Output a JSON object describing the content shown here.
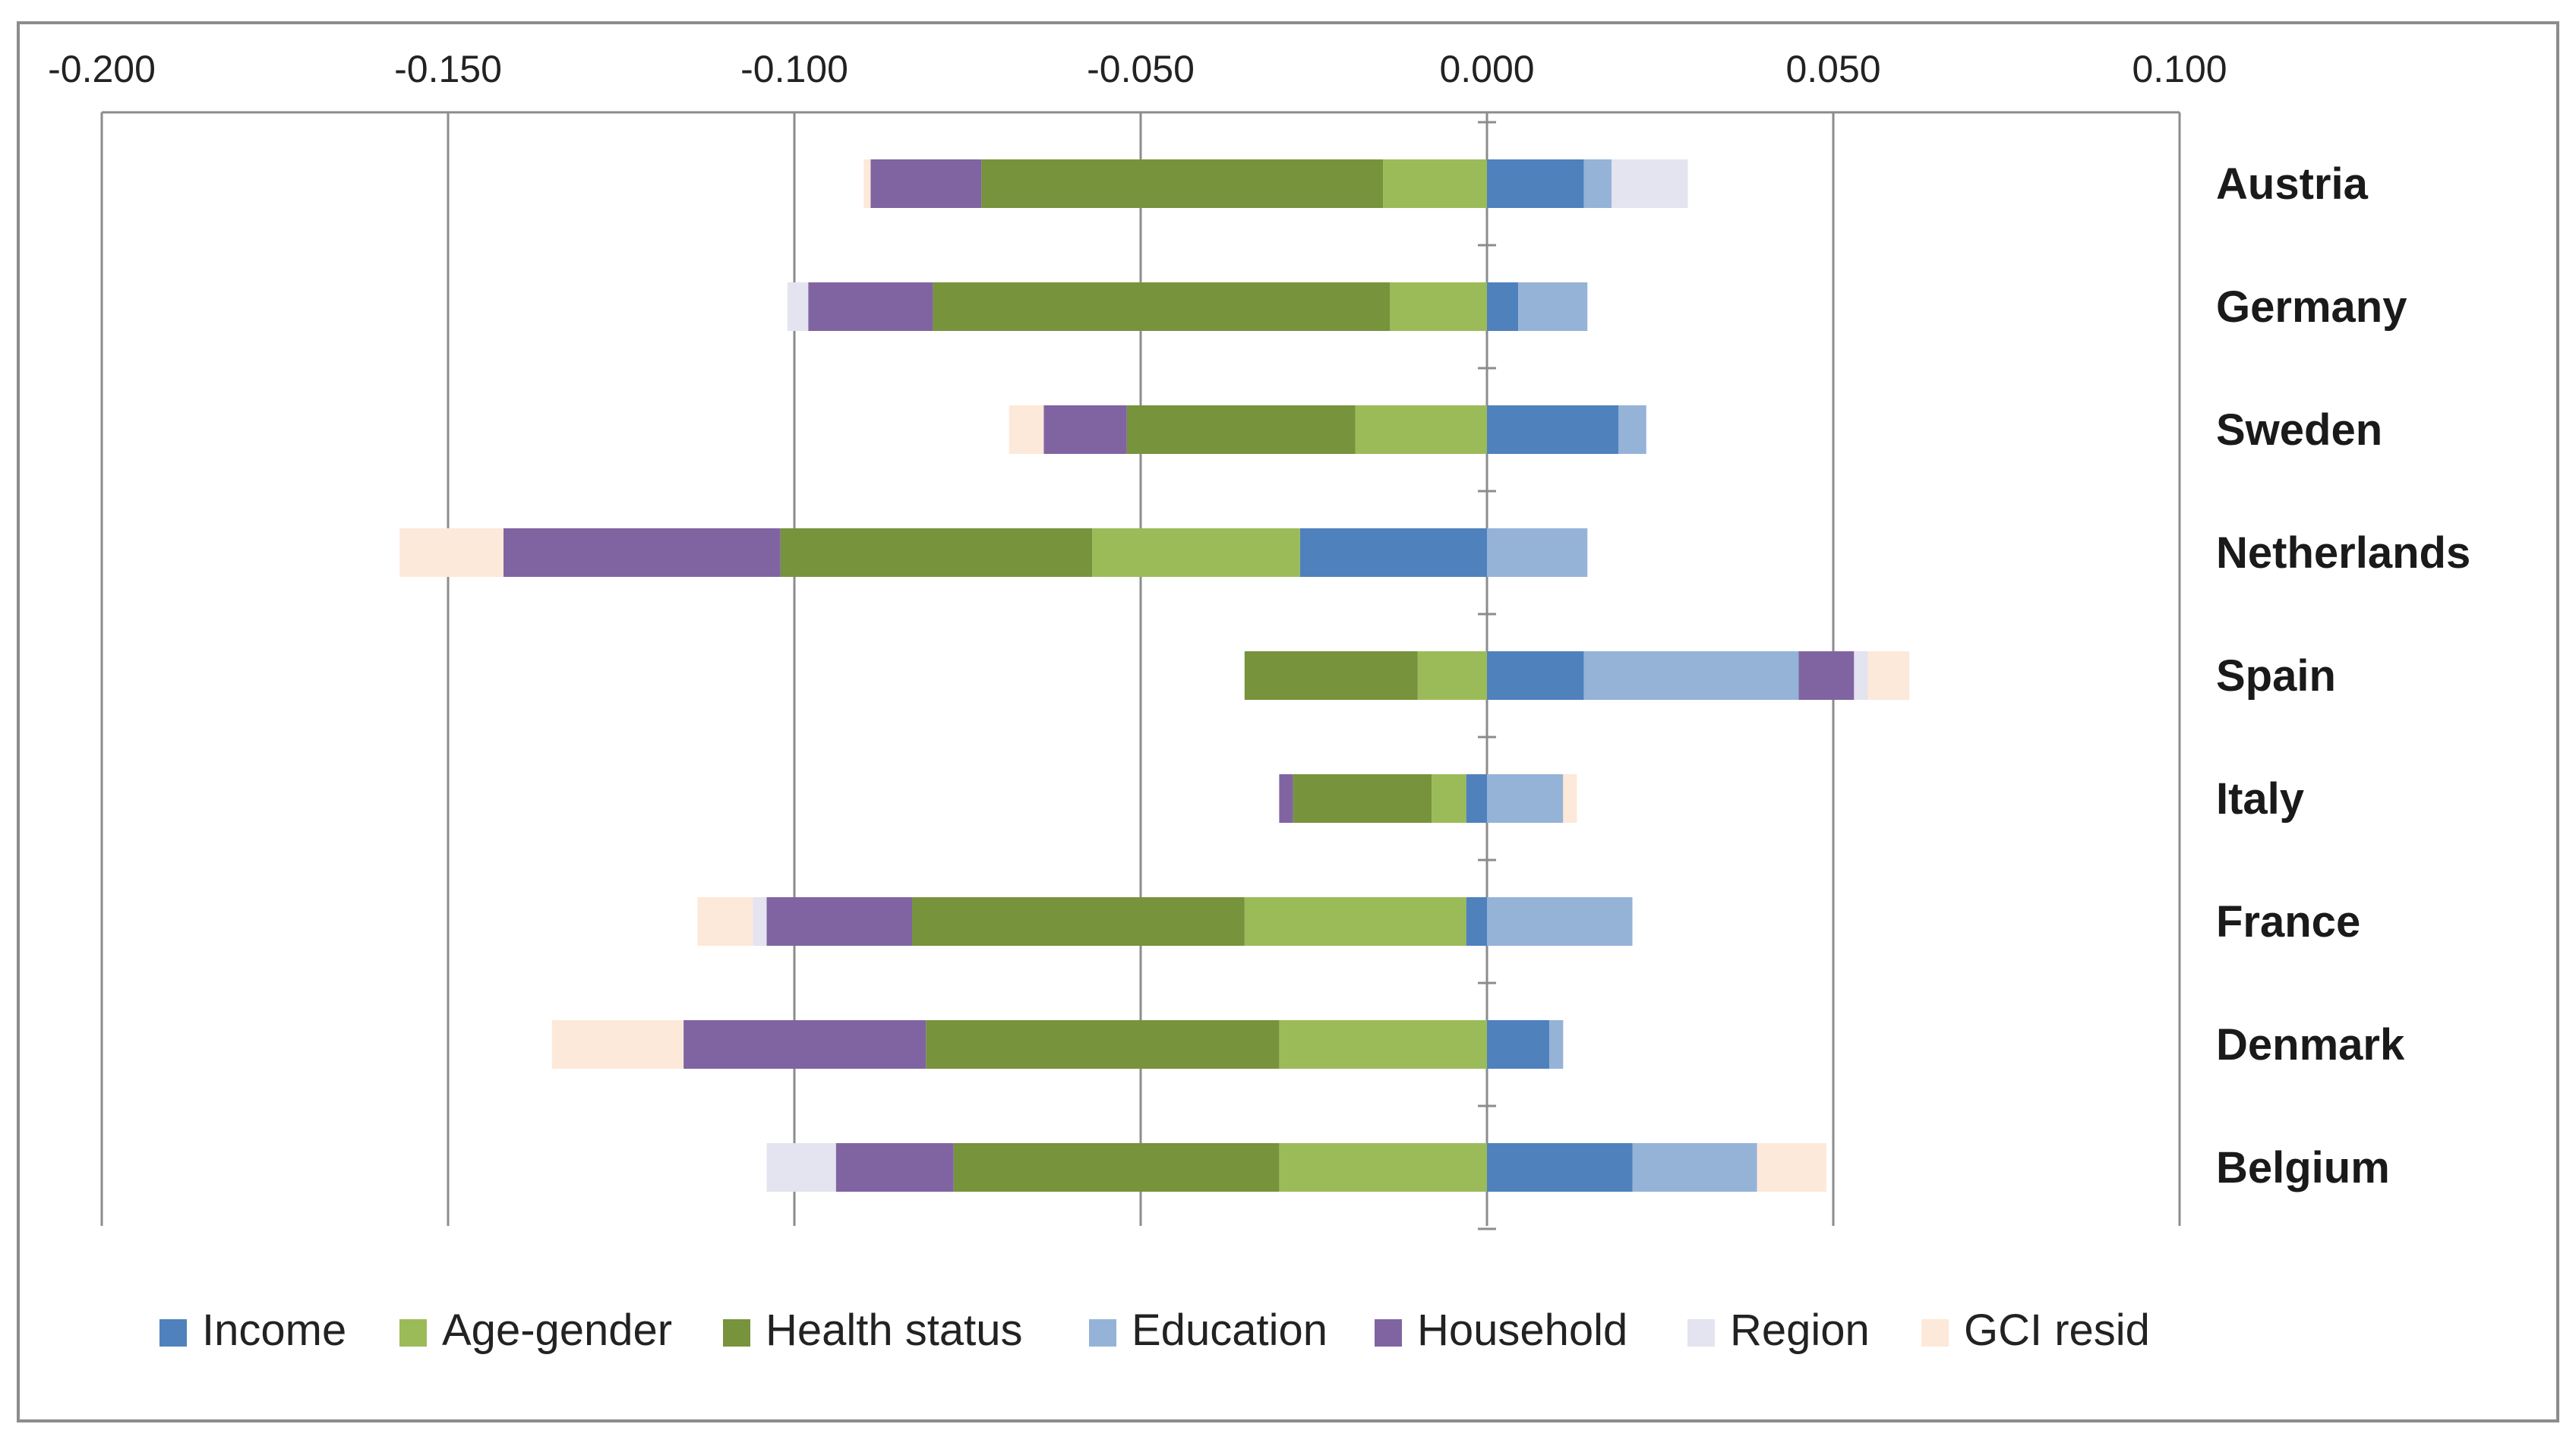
{
  "chart_data": {
    "type": "bar",
    "orientation": "horizontal",
    "stacked": true,
    "title": "",
    "xlabel": "",
    "ylabel": "",
    "xlim": [
      -0.2,
      0.1
    ],
    "x_ticks": [
      -0.2,
      -0.15,
      -0.1,
      -0.05,
      0.0,
      0.05,
      0.1
    ],
    "x_tick_labels": [
      "-0.200",
      "-0.150",
      "-0.100",
      "-0.050",
      "0.000",
      "0.050",
      "0.100"
    ],
    "x_axis_position": "top",
    "grid": "vertical major gridlines",
    "legend_position": "bottom",
    "categories": [
      "Austria",
      "Germany",
      "Sweden",
      "Netherlands",
      "Spain",
      "Italy",
      "France",
      "Denmark",
      "Belgium"
    ],
    "series": [
      {
        "name": "Income",
        "color": "#4f81bd",
        "values": [
          0.014,
          0.0045,
          0.019,
          -0.027,
          0.014,
          -0.003,
          -0.003,
          0.009,
          0.021
        ]
      },
      {
        "name": "Age-gender",
        "color": "#9bbb59",
        "values": [
          -0.015,
          -0.014,
          -0.019,
          -0.03,
          -0.01,
          -0.005,
          -0.032,
          -0.03,
          -0.03
        ]
      },
      {
        "name": "Health status",
        "color": "#77933c",
        "values": [
          -0.058,
          -0.066,
          -0.033,
          -0.045,
          -0.025,
          -0.02,
          -0.048,
          -0.051,
          -0.047
        ]
      },
      {
        "name": "Education",
        "color": "#95b3d7",
        "values": [
          0.004,
          0.01,
          0.004,
          0.0145,
          0.031,
          0.011,
          0.021,
          0.002,
          0.018
        ]
      },
      {
        "name": "Household",
        "color": "#8064a2",
        "values": [
          -0.016,
          -0.018,
          -0.012,
          -0.04,
          0.008,
          -0.002,
          -0.021,
          -0.035,
          -0.017
        ]
      },
      {
        "name": "Region",
        "color": "#e4e3f0",
        "values": [
          0.011,
          -0.003,
          0.0,
          0.0,
          0.002,
          0.0,
          -0.002,
          0.0,
          -0.01
        ]
      },
      {
        "name": "GCI resid",
        "color": "#fde9d9",
        "values": [
          -0.001,
          0.0,
          -0.005,
          -0.015,
          0.006,
          0.002,
          -0.008,
          -0.019,
          0.01
        ]
      }
    ]
  }
}
